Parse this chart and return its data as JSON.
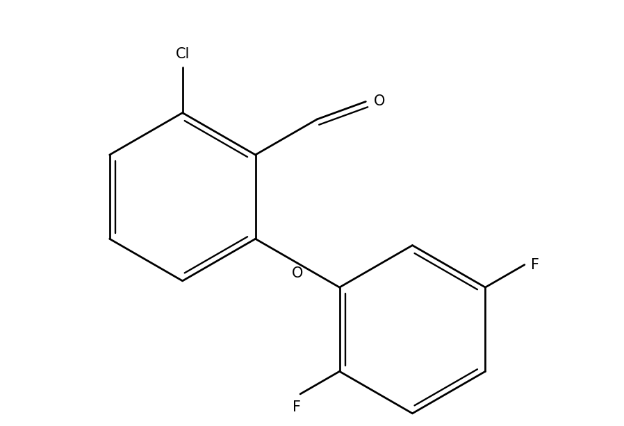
{
  "background_color": "#ffffff",
  "line_color": "#000000",
  "line_width": 2.0,
  "font_size": 15,
  "figsize": [
    8.98,
    6.14
  ],
  "dpi": 100,
  "xlim": [
    -1.5,
    7.5
  ],
  "ylim": [
    -2.5,
    4.0
  ]
}
